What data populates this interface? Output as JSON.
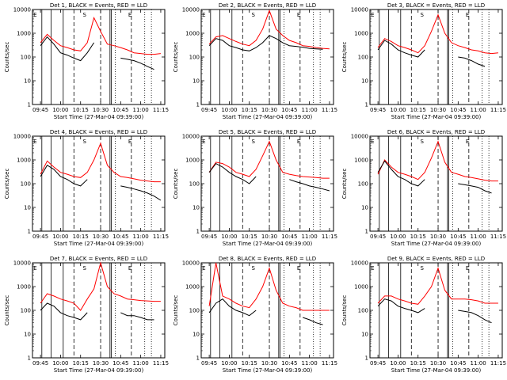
{
  "shared": {
    "ylabel": "Counts/sec",
    "xlabel": "Start Time (27-Mar-04 09:39:00)",
    "x_ticks": [
      "09:45",
      "10:00",
      "10:15",
      "10:30",
      "10:45",
      "11:00",
      "11:15"
    ],
    "y_ticks": [
      "1",
      "10",
      "100",
      "1000",
      "10000"
    ],
    "region_letters": [
      "E",
      "S",
      "E"
    ],
    "colors": {
      "events": "#000000",
      "lld": "#ff0000",
      "background": "#ffffff"
    }
  },
  "chart_data": [
    {
      "type": "line",
      "title": "Det 1, BLACK = Events, RED = LLD",
      "x": [
        "09:45",
        "09:50",
        "09:55",
        "10:00",
        "10:05",
        "10:10",
        "10:15",
        "10:20",
        "10:25",
        "10:30",
        "10:35",
        "10:40",
        "10:45",
        "10:50",
        "10:55",
        "11:00",
        "11:05",
        "11:10",
        "11:15"
      ],
      "series": [
        {
          "name": "Events",
          "color": "#000000",
          "values": [
            300,
            700,
            350,
            150,
            120,
            90,
            70,
            150,
            400,
            null,
            null,
            null,
            90,
            80,
            70,
            55,
            40,
            30,
            null
          ]
        },
        {
          "name": "LLD",
          "color": "#ff0000",
          "values": [
            400,
            900,
            500,
            300,
            250,
            200,
            180,
            400,
            4500,
            1200,
            350,
            300,
            250,
            200,
            150,
            140,
            130,
            130,
            140
          ]
        }
      ],
      "xlim": [
        "09:39",
        "11:18"
      ],
      "ylim": [
        1,
        10000
      ],
      "yscale": "log"
    },
    {
      "type": "line",
      "title": "Det 2, BLACK = Events, RED = LLD",
      "x": [
        "09:45",
        "09:50",
        "09:55",
        "10:00",
        "10:05",
        "10:10",
        "10:15",
        "10:20",
        "10:25",
        "10:30",
        "10:35",
        "10:40",
        "10:45",
        "10:50",
        "10:55",
        "11:00",
        "11:05",
        "11:10",
        "11:15"
      ],
      "series": [
        {
          "name": "Events",
          "color": "#000000",
          "values": [
            300,
            600,
            500,
            300,
            250,
            200,
            180,
            250,
            400,
            800,
            600,
            400,
            300,
            280,
            260,
            230,
            220,
            210,
            null
          ]
        },
        {
          "name": "LLD",
          "color": "#ff0000",
          "values": [
            350,
            700,
            800,
            600,
            450,
            350,
            300,
            500,
            1500,
            9000,
            1500,
            800,
            500,
            400,
            300,
            280,
            250,
            230,
            220
          ]
        }
      ],
      "xlim": [
        "09:39",
        "11:18"
      ],
      "ylim": [
        1,
        10000
      ],
      "yscale": "log"
    },
    {
      "type": "line",
      "title": "Det 3, BLACK = Events, RED = LLD",
      "x": [
        "09:45",
        "09:50",
        "09:55",
        "10:00",
        "10:05",
        "10:10",
        "10:15",
        "10:20",
        "10:25",
        "10:30",
        "10:35",
        "10:40",
        "10:45",
        "10:50",
        "10:55",
        "11:00",
        "11:05",
        "11:10",
        "11:15"
      ],
      "series": [
        {
          "name": "Events",
          "color": "#000000",
          "values": [
            200,
            500,
            350,
            200,
            150,
            120,
            100,
            200,
            null,
            null,
            null,
            null,
            100,
            90,
            70,
            50,
            40,
            null,
            null
          ]
        },
        {
          "name": "LLD",
          "color": "#ff0000",
          "values": [
            250,
            600,
            450,
            300,
            250,
            200,
            150,
            300,
            1200,
            6000,
            1000,
            400,
            300,
            250,
            200,
            180,
            150,
            140,
            150
          ]
        }
      ],
      "xlim": [
        "09:39",
        "11:18"
      ],
      "ylim": [
        1,
        10000
      ],
      "yscale": "log"
    },
    {
      "type": "line",
      "title": "Det 4, BLACK = Events, RED = LLD",
      "x": [
        "09:45",
        "09:50",
        "09:55",
        "10:00",
        "10:05",
        "10:10",
        "10:15",
        "10:20",
        "10:25",
        "10:30",
        "10:35",
        "10:40",
        "10:45",
        "10:50",
        "10:55",
        "11:00",
        "11:05",
        "11:10",
        "11:15"
      ],
      "series": [
        {
          "name": "Events",
          "color": "#000000",
          "values": [
            200,
            600,
            400,
            200,
            150,
            100,
            80,
            150,
            null,
            null,
            null,
            null,
            80,
            70,
            60,
            50,
            40,
            30,
            20
          ]
        },
        {
          "name": "LLD",
          "color": "#ff0000",
          "values": [
            250,
            900,
            500,
            300,
            250,
            200,
            180,
            300,
            1000,
            5000,
            600,
            300,
            200,
            180,
            160,
            140,
            130,
            120,
            120
          ]
        }
      ],
      "xlim": [
        "09:39",
        "11:18"
      ],
      "ylim": [
        1,
        10000
      ],
      "yscale": "log"
    },
    {
      "type": "line",
      "title": "Det 5, BLACK = Events, RED = LLD",
      "x": [
        "09:45",
        "09:50",
        "09:55",
        "10:00",
        "10:05",
        "10:10",
        "10:15",
        "10:20",
        "10:25",
        "10:30",
        "10:35",
        "10:40",
        "10:45",
        "10:50",
        "10:55",
        "11:00",
        "11:05",
        "11:10",
        "11:15"
      ],
      "series": [
        {
          "name": "Events",
          "color": "#000000",
          "values": [
            300,
            700,
            500,
            300,
            200,
            150,
            100,
            200,
            null,
            null,
            null,
            null,
            150,
            120,
            100,
            80,
            70,
            60,
            50
          ]
        },
        {
          "name": "LLD",
          "color": "#ff0000",
          "values": [
            300,
            800,
            700,
            500,
            300,
            250,
            200,
            400,
            1500,
            6000,
            1000,
            300,
            250,
            220,
            200,
            190,
            180,
            170,
            170
          ]
        }
      ],
      "xlim": [
        "09:39",
        "11:18"
      ],
      "ylim": [
        1,
        10000
      ],
      "yscale": "log"
    },
    {
      "type": "line",
      "title": "Det 6, BLACK = Events, RED = LLD",
      "x": [
        "09:45",
        "09:50",
        "09:55",
        "10:00",
        "10:05",
        "10:10",
        "10:15",
        "10:20",
        "10:25",
        "10:30",
        "10:35",
        "10:40",
        "10:45",
        "10:50",
        "10:55",
        "11:00",
        "11:05",
        "11:10",
        "11:15"
      ],
      "series": [
        {
          "name": "Events",
          "color": "#000000",
          "values": [
            300,
            900,
            400,
            200,
            150,
            100,
            80,
            150,
            null,
            null,
            null,
            null,
            100,
            90,
            80,
            70,
            50,
            40,
            null
          ]
        },
        {
          "name": "LLD",
          "color": "#ff0000",
          "values": [
            250,
            1000,
            500,
            300,
            250,
            200,
            150,
            300,
            1200,
            6000,
            800,
            300,
            250,
            200,
            180,
            160,
            140,
            130,
            130
          ]
        }
      ],
      "xlim": [
        "09:39",
        "11:18"
      ],
      "ylim": [
        1,
        10000
      ],
      "yscale": "log"
    },
    {
      "type": "line",
      "title": "Det 7, BLACK = Events, RED = LLD",
      "x": [
        "09:45",
        "09:50",
        "09:55",
        "10:00",
        "10:05",
        "10:10",
        "10:15",
        "10:20",
        "10:25",
        "10:30",
        "10:35",
        "10:40",
        "10:45",
        "10:50",
        "10:55",
        "11:00",
        "11:05",
        "11:10",
        "11:15"
      ],
      "series": [
        {
          "name": "Events",
          "color": "#000000",
          "values": [
            100,
            200,
            150,
            80,
            60,
            50,
            40,
            80,
            null,
            null,
            null,
            null,
            80,
            60,
            60,
            50,
            40,
            40,
            null
          ]
        },
        {
          "name": "LLD",
          "color": "#ff0000",
          "values": [
            200,
            500,
            400,
            300,
            250,
            200,
            100,
            300,
            800,
            10000,
            1000,
            500,
            400,
            300,
            280,
            260,
            250,
            240,
            240
          ]
        }
      ],
      "xlim": [
        "09:39",
        "11:18"
      ],
      "ylim": [
        1,
        10000
      ],
      "yscale": "log"
    },
    {
      "type": "line",
      "title": "Det 8, BLACK = Events, RED = LLD",
      "x": [
        "09:45",
        "09:50",
        "09:55",
        "10:00",
        "10:05",
        "10:10",
        "10:15",
        "10:20",
        "10:25",
        "10:30",
        "10:35",
        "10:40",
        "10:45",
        "10:50",
        "10:55",
        "11:00",
        "11:05",
        "11:10",
        "11:15"
      ],
      "series": [
        {
          "name": "Events",
          "color": "#000000",
          "values": [
            80,
            200,
            300,
            150,
            100,
            80,
            60,
            100,
            null,
            null,
            null,
            null,
            null,
            null,
            50,
            40,
            30,
            25,
            null
          ]
        },
        {
          "name": "LLD",
          "color": "#ff0000",
          "values": [
            150,
            10000,
            400,
            300,
            200,
            150,
            130,
            300,
            1000,
            6000,
            700,
            200,
            150,
            130,
            100,
            100,
            100,
            100,
            100
          ]
        }
      ],
      "xlim": [
        "09:39",
        "11:18"
      ],
      "ylim": [
        1,
        10000
      ],
      "yscale": "log"
    },
    {
      "type": "line",
      "title": "Det 9, BLACK = Events, RED = LLD",
      "x": [
        "09:45",
        "09:50",
        "09:55",
        "10:00",
        "10:05",
        "10:10",
        "10:15",
        "10:20",
        "10:25",
        "10:30",
        "10:35",
        "10:40",
        "10:45",
        "10:50",
        "10:55",
        "11:00",
        "11:05",
        "11:10",
        "11:15"
      ],
      "series": [
        {
          "name": "Events",
          "color": "#000000",
          "values": [
            150,
            300,
            250,
            150,
            120,
            100,
            80,
            120,
            null,
            null,
            null,
            null,
            100,
            90,
            80,
            60,
            40,
            30,
            null
          ]
        },
        {
          "name": "LLD",
          "color": "#ff0000",
          "values": [
            200,
            400,
            400,
            300,
            250,
            200,
            180,
            400,
            1000,
            6000,
            700,
            300,
            300,
            300,
            280,
            250,
            200,
            200,
            200
          ]
        }
      ],
      "xlim": [
        "09:39",
        "11:18"
      ],
      "ylim": [
        1,
        10000
      ],
      "yscale": "log"
    }
  ]
}
